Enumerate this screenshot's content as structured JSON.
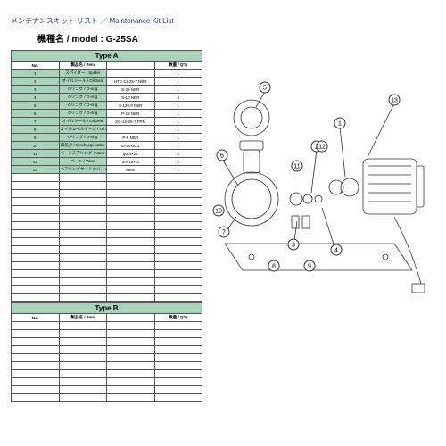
{
  "header": {
    "title_jp_en": "メンテナンスキット リスト ／ Maintenance Kit List",
    "model_label": "機種名 / model  :  G-25SA"
  },
  "table_a": {
    "type_label": "Type  A",
    "cols": {
      "no": "No.",
      "item": "製品名 / Item",
      "spec": "",
      "qty": "数量 / Q'ty"
    },
    "rows": [
      {
        "no": "1",
        "item": "スパイダー / Spider",
        "spec": "",
        "qty": "1"
      },
      {
        "no": "2",
        "item": "オイルシール / Oil Seal",
        "spec": "HTC-11-25-7  NBR",
        "qty": "1"
      },
      {
        "no": "3",
        "item": "Oリング / O-ring",
        "spec": "S-29  NBR",
        "qty": "1"
      },
      {
        "no": "4",
        "item": "Oリング / O-ring",
        "spec": "S-10  NBR",
        "qty": "4"
      },
      {
        "no": "5",
        "item": "Oリング / O-ring",
        "spec": "S-120.0  NBR",
        "qty": "1"
      },
      {
        "no": "6",
        "item": "Oリング / O-ring",
        "spec": "P-18  NBR",
        "qty": "1"
      },
      {
        "no": "7",
        "item": "オイルシール / Oil Seal",
        "spec": "SC-12-25-7  FPM",
        "qty": "1"
      },
      {
        "no": "8",
        "item": "オイルレベルゲージ / Oil Level Gauge",
        "spec": "",
        "qty": "1"
      },
      {
        "no": "9",
        "item": "Oリング / O-ring",
        "spec": "P-5  NBR",
        "qty": "1"
      },
      {
        "no": "10",
        "item": "排気弁 / Discharge Valve",
        "spec": "8×24×t0.1",
        "qty": "1"
      },
      {
        "no": "11",
        "item": "ベーンスプリング / Vane Spring",
        "spec": "φ2.4×24",
        "qty": "2"
      },
      {
        "no": "12",
        "item": "ベーン / Vane",
        "spec": "20×15×t4",
        "qty": "2"
      },
      {
        "no": "13",
        "item": "ベアリングサイドカバー / Bearing Side Cover",
        "spec": "6900",
        "qty": "1"
      }
    ],
    "blank_rows": 16
  },
  "table_b": {
    "type_label": "Type  B",
    "cols": {
      "no": "No.",
      "item": "製品名 / Item",
      "spec": "",
      "qty": "数量 / Q'ty"
    },
    "blank_rows": 10
  },
  "diagram": {
    "callouts": [
      "1",
      "2",
      "3",
      "4",
      "5",
      "6",
      "7",
      "8",
      "9",
      "10",
      "11",
      "12",
      "13"
    ],
    "stroke": "#333",
    "callout_fill": "#fff"
  }
}
